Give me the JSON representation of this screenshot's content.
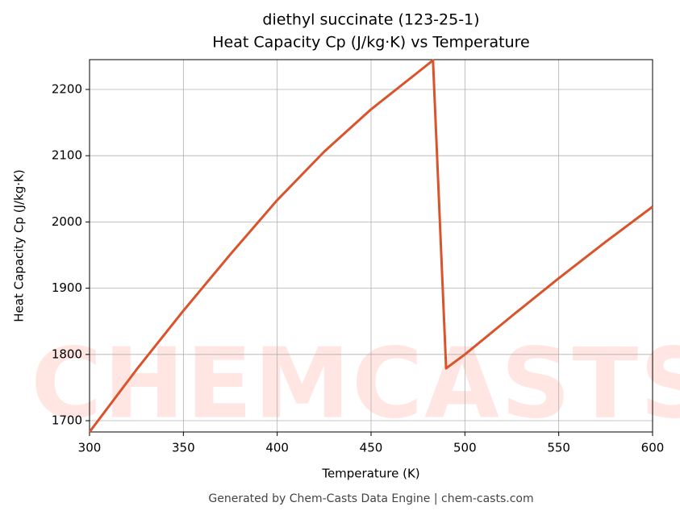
{
  "chart_data": {
    "type": "line",
    "title": "diethyl succinate (123-25-1)",
    "subtitle": "Heat Capacity Cp (J/kg·K) vs Temperature",
    "x_label": "Temperature (K)",
    "y_label": "Heat Capacity Cp (J/kg·K)",
    "footer": "Generated by Chem-Casts Data Engine | chem-casts.com",
    "watermark": "CHEMCASTS",
    "x": [
      300,
      325,
      350,
      375,
      400,
      425,
      450,
      475,
      483,
      490,
      500,
      525,
      550,
      575,
      600
    ],
    "series": [
      {
        "name": "Cp",
        "color": "#d9532b",
        "values": [
          1683,
          1777,
          1866,
          1951,
          2033,
          2106,
          2170,
          2226,
          2244,
          1779,
          1800,
          1858,
          1915,
          1970,
          2023
        ]
      }
    ],
    "xlim": [
      300,
      600
    ],
    "ylim": [
      1683,
      2245
    ],
    "xticks": [
      300,
      350,
      400,
      450,
      500,
      550,
      600
    ],
    "yticks": [
      1700,
      1800,
      1900,
      2000,
      2100,
      2200
    ],
    "grid": true
  }
}
